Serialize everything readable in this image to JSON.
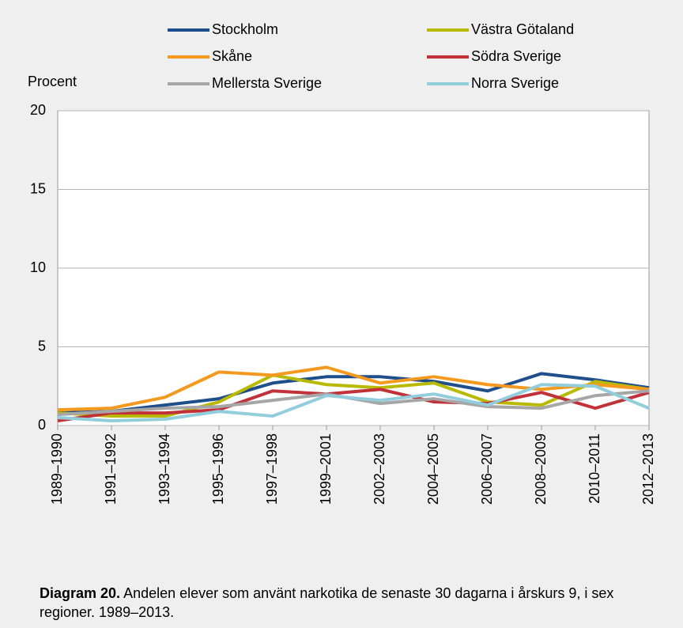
{
  "chart_data": {
    "type": "line",
    "y_label": "Procent",
    "categories": [
      "1989–1990",
      "1991–1992",
      "1993–1994",
      "1995–1996",
      "1997–1998",
      "1999–2001",
      "2002–2003",
      "2004–2005",
      "2006–2007",
      "2008–2009",
      "2010–2011",
      "2012–2013"
    ],
    "series": [
      {
        "name": "Stockholm",
        "color": "#1f4e8c",
        "values": [
          0.8,
          0.9,
          1.3,
          1.7,
          2.7,
          3.1,
          3.1,
          2.8,
          2.2,
          3.3,
          2.9,
          2.4
        ]
      },
      {
        "name": "Västra Götaland",
        "color": "#b8ba00",
        "values": [
          0.8,
          0.6,
          0.6,
          1.5,
          3.2,
          2.6,
          2.4,
          2.7,
          1.5,
          1.3,
          2.8,
          2.3
        ]
      },
      {
        "name": "Skåne",
        "color": "#f39a1e",
        "values": [
          1.0,
          1.1,
          1.8,
          3.4,
          3.2,
          3.7,
          2.7,
          3.1,
          2.6,
          2.3,
          2.6,
          2.3
        ]
      },
      {
        "name": "Södra Sverige",
        "color": "#c0313a",
        "values": [
          0.3,
          0.8,
          0.8,
          1.0,
          2.2,
          2.0,
          2.3,
          1.5,
          1.4,
          2.1,
          1.1,
          2.1
        ]
      },
      {
        "name": "Mellersta Sverige",
        "color": "#a6a6a6",
        "values": [
          0.7,
          0.9,
          1.1,
          1.2,
          1.6,
          2.0,
          1.4,
          1.7,
          1.2,
          1.1,
          1.9,
          2.2
        ]
      },
      {
        "name": "Norra Sverige",
        "color": "#92cddc",
        "values": [
          0.5,
          0.3,
          0.4,
          0.9,
          0.6,
          1.9,
          1.6,
          2.0,
          1.3,
          2.6,
          2.5,
          1.1
        ]
      }
    ],
    "ylim": [
      0,
      20
    ],
    "yticks": [
      0,
      5,
      10,
      15,
      20
    ],
    "grid": true
  },
  "caption": {
    "label": "Diagram 20.",
    "text": " Andelen elever som använt narkotika de senaste 30 dagarna i årskurs 9, i sex regioner. 1989–2013."
  }
}
